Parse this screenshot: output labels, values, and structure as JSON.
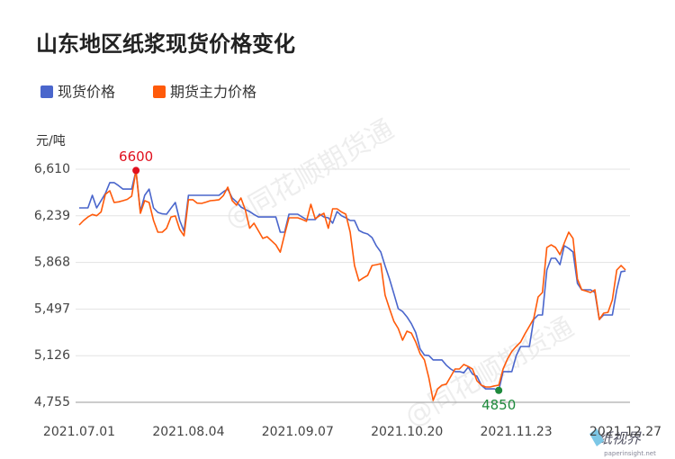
{
  "chart_data": {
    "type": "line",
    "title": "山东地区纸浆现货价格变化",
    "y_unit": "元/吨",
    "watermark": "@同花顺期货通",
    "logo": {
      "name": "纸视界",
      "url": "paperinsight.net"
    },
    "categories": [
      "2021.07.01",
      null,
      null,
      null,
      null,
      null,
      null,
      null,
      null,
      null,
      null,
      null,
      null,
      null,
      null,
      null,
      null,
      null,
      null,
      null,
      null,
      null,
      null,
      null,
      null,
      "2021.08.04",
      null,
      null,
      null,
      null,
      null,
      null,
      null,
      null,
      null,
      null,
      null,
      null,
      null,
      null,
      null,
      null,
      null,
      null,
      null,
      null,
      null,
      null,
      null,
      null,
      "2021.09.07",
      null,
      null,
      null,
      null,
      null,
      null,
      null,
      null,
      null,
      null,
      null,
      null,
      null,
      null,
      null,
      null,
      null,
      null,
      null,
      null,
      null,
      null,
      null,
      null,
      "2021.10.20",
      null,
      null,
      null,
      null,
      null,
      null,
      null,
      null,
      null,
      null,
      null,
      null,
      null,
      null,
      null,
      null,
      null,
      null,
      null,
      null,
      null,
      null,
      null,
      null,
      "2021.11.23",
      null,
      null,
      null,
      null,
      null,
      null,
      null,
      null,
      null,
      null,
      null,
      null,
      null,
      null,
      null,
      null,
      null,
      null,
      null,
      null,
      null,
      null,
      null,
      null,
      "2021.12.27"
    ],
    "series": [
      {
        "name": "现货价格",
        "color": "#4a66cc",
        "values": [
          6302,
          6302,
          6302,
          6402,
          6302,
          6360,
          6417,
          6503,
          6503,
          6480,
          6452,
          6452,
          6452,
          6600,
          6273,
          6402,
          6452,
          6302,
          6266,
          6255,
          6252,
          6300,
          6345,
          6202,
          6116,
          6402,
          6402,
          6402,
          6402,
          6402,
          6402,
          6402,
          6402,
          6430,
          6452,
          6381,
          6350,
          6309,
          6290,
          6273,
          6250,
          6230,
          6230,
          6230,
          6230,
          6230,
          6109,
          6109,
          6252,
          6252,
          6252,
          6230,
          6209,
          6209,
          6209,
          6252,
          6230,
          6223,
          6180,
          6273,
          6240,
          6223,
          6202,
          6202,
          6123,
          6105,
          6094,
          6066,
          6000,
          5951,
          5840,
          5736,
          5620,
          5500,
          5478,
          5435,
          5380,
          5310,
          5180,
          5130,
          5127,
          5092,
          5092,
          5092,
          5050,
          5020,
          4999,
          4999,
          4990,
          5034,
          4980,
          4963,
          4891,
          4862,
          4862,
          4862,
          4850,
          4999,
          4999,
          4999,
          5127,
          5199,
          5199,
          5199,
          5414,
          5450,
          5450,
          5808,
          5901,
          5901,
          5850,
          6001,
          5980,
          5951,
          5701,
          5650,
          5650,
          5650,
          5629,
          5414,
          5450,
          5450,
          5450,
          5650,
          5794,
          5800
        ]
      },
      {
        "name": "期货主力价格",
        "color": "#ff5a0a",
        "values": [
          6166,
          6202,
          6230,
          6250,
          6240,
          6270,
          6410,
          6438,
          6345,
          6350,
          6359,
          6370,
          6395,
          6600,
          6259,
          6359,
          6345,
          6202,
          6109,
          6109,
          6140,
          6230,
          6238,
          6130,
          6080,
          6367,
          6367,
          6340,
          6338,
          6348,
          6359,
          6362,
          6367,
          6400,
          6467,
          6360,
          6324,
          6381,
          6288,
          6140,
          6180,
          6120,
          6059,
          6073,
          6040,
          6008,
          5950,
          6090,
          6223,
          6223,
          6223,
          6210,
          6195,
          6331,
          6216,
          6240,
          6259,
          6140,
          6295,
          6295,
          6270,
          6252,
          6109,
          5844,
          5722,
          5745,
          5765,
          5844,
          5850,
          5858,
          5607,
          5500,
          5400,
          5342,
          5249,
          5321,
          5306,
          5235,
          5142,
          5092,
          4950,
          4769,
          4862,
          4891,
          4900,
          4960,
          5020,
          5020,
          5056,
          5040,
          5020,
          4927,
          4891,
          4877,
          4877,
          4885,
          4891,
          5020,
          5100,
          5160,
          5200,
          5235,
          5300,
          5360,
          5420,
          5593,
          5629,
          5987,
          6008,
          5987,
          5930,
          6023,
          6109,
          6059,
          5736,
          5650,
          5640,
          5629,
          5650,
          5414,
          5464,
          5471,
          5571,
          5808,
          5844,
          5808
        ]
      }
    ],
    "annotations": [
      {
        "label": "6600",
        "value": 6600,
        "color": "#e0101e"
      },
      {
        "label": "4850",
        "value": 4850,
        "color": "#1e8a3c"
      }
    ],
    "ylim": [
      4755,
      6610
    ],
    "yticks": [
      {
        "value": 4755,
        "label": "4,755"
      },
      {
        "value": 5126,
        "label": "5,126"
      },
      {
        "value": 5497,
        "label": "5,497"
      },
      {
        "value": 5868,
        "label": "5,868"
      },
      {
        "value": 6239,
        "label": "6,239"
      },
      {
        "value": 6610,
        "label": "6,610"
      }
    ],
    "grid": true
  }
}
